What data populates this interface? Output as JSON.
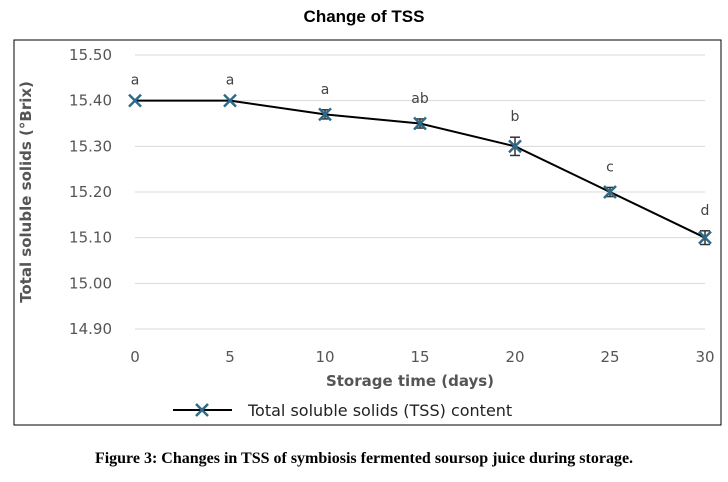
{
  "caption": "Figure 3: Changes in TSS of symbiosis fermented soursop juice during storage.",
  "colors": {
    "line": "#000000",
    "marker": "#2e6b8a",
    "grid": "#d9d9d9",
    "frame": "#000000"
  },
  "chart_data": {
    "type": "line",
    "title": "Change of TSS",
    "xlabel": "Storage time (days)",
    "ylabel": "Total soluble solids (°Brix)",
    "x": [
      0,
      5,
      10,
      15,
      20,
      25,
      30
    ],
    "xticks": [
      "0",
      "5",
      "10",
      "15",
      "20",
      "25",
      "30"
    ],
    "yticks": [
      "14.90",
      "15.00",
      "15.10",
      "15.20",
      "15.30",
      "15.40",
      "15.50"
    ],
    "ylim": [
      14.9,
      15.5
    ],
    "xlim": [
      0,
      30
    ],
    "grid": true,
    "legend_position": "bottom",
    "series": [
      {
        "name": "Total soluble solids (TSS) content",
        "marker": "x",
        "values": [
          15.4,
          15.4,
          15.37,
          15.35,
          15.3,
          15.2,
          15.1
        ],
        "errors": [
          0.0,
          0.0,
          0.01,
          0.01,
          0.02,
          0.01,
          0.015
        ],
        "labels": [
          "a",
          "a",
          "a",
          "ab",
          "b",
          "c",
          "d"
        ]
      }
    ]
  }
}
